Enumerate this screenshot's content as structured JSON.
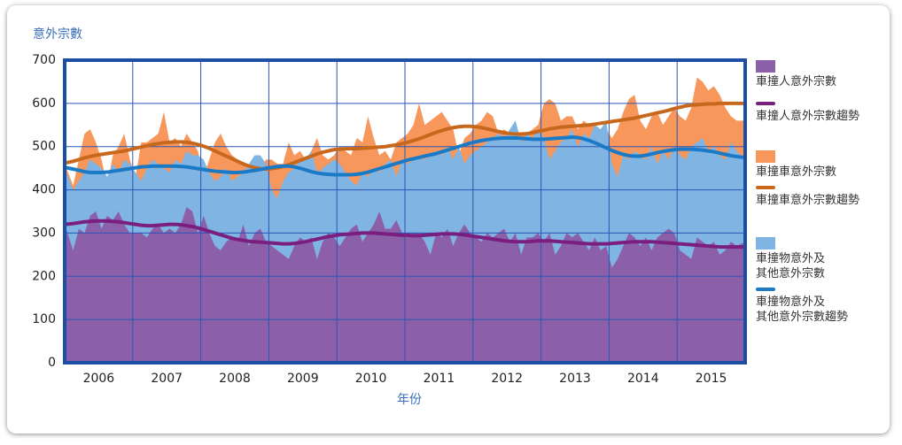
{
  "chart_data": {
    "type": "area",
    "title": "意外宗數",
    "x_label": "年份",
    "categories": [
      null,
      null,
      null,
      null,
      null,
      "2006",
      null,
      null,
      null,
      null,
      null,
      null,
      null,
      null,
      null,
      null,
      null,
      "2007",
      null,
      null,
      null,
      null,
      null,
      null,
      null,
      null,
      null,
      null,
      null,
      "2008",
      null,
      null,
      null,
      null,
      null,
      null,
      null,
      null,
      null,
      null,
      null,
      "2009",
      null,
      null,
      null,
      null,
      null,
      null,
      null,
      null,
      null,
      null,
      null,
      "2010",
      null,
      null,
      null,
      null,
      null,
      null,
      null,
      null,
      null,
      null,
      null,
      "2011",
      null,
      null,
      null,
      null,
      null,
      null,
      null,
      null,
      null,
      null,
      null,
      "2012",
      null,
      null,
      null,
      null,
      null,
      null,
      null,
      null,
      null,
      null,
      null,
      "2013",
      null,
      null,
      null,
      null,
      null,
      null,
      null,
      null,
      null,
      null,
      null,
      "2014",
      null,
      null,
      null,
      null,
      null,
      null,
      null,
      null,
      null,
      null,
      null,
      "2015",
      null,
      null,
      null,
      null,
      null,
      null
    ],
    "ylim": [
      0,
      700
    ],
    "yticks": [
      0,
      100,
      200,
      300,
      400,
      500,
      600,
      700
    ],
    "grid": true,
    "series": [
      {
        "name": "車撞人意外宗數",
        "type": "area",
        "color": "#8b60a9",
        "values": [
          320,
          260,
          310,
          300,
          340,
          350,
          310,
          340,
          330,
          350,
          320,
          300,
          300,
          300,
          290,
          310,
          320,
          300,
          310,
          300,
          320,
          360,
          350,
          300,
          340,
          300,
          270,
          260,
          280,
          290,
          280,
          320,
          270,
          300,
          310,
          280,
          270,
          260,
          250,
          240,
          270,
          290,
          280,
          290,
          240,
          280,
          300,
          290,
          270,
          290,
          310,
          320,
          280,
          300,
          320,
          350,
          310,
          310,
          330,
          300,
          290,
          300,
          300,
          280,
          250,
          300,
          290,
          310,
          270,
          300,
          320,
          300,
          290,
          280,
          300,
          290,
          300,
          310,
          280,
          300,
          250,
          290,
          290,
          300,
          280,
          300,
          250,
          270,
          300,
          290,
          300,
          280,
          260,
          290,
          260,
          270,
          220,
          240,
          270,
          300,
          290,
          270,
          290,
          260,
          290,
          300,
          310,
          300,
          260,
          250,
          240,
          290,
          280,
          270,
          280,
          250,
          260,
          280,
          270,
          280
        ]
      },
      {
        "name": "車撞人意外宗數趨勢",
        "type": "line",
        "color": "#7a1f80",
        "values": [
          320,
          322,
          324,
          326,
          327,
          328,
          328,
          328,
          327,
          326,
          324,
          322,
          320,
          318,
          317,
          317,
          318,
          319,
          320,
          320,
          319,
          317,
          315,
          312,
          308,
          304,
          300,
          296,
          292,
          288,
          285,
          283,
          281,
          280,
          279,
          278,
          277,
          276,
          275,
          275,
          276,
          278,
          280,
          283,
          286,
          289,
          292,
          294,
          296,
          297,
          298,
          299,
          300,
          300,
          300,
          299,
          298,
          297,
          296,
          295,
          295,
          294,
          294,
          295,
          296,
          297,
          298,
          298,
          298,
          297,
          296,
          294,
          292,
          290,
          288,
          286,
          284,
          282,
          281,
          280,
          280,
          280,
          281,
          282,
          282,
          282,
          281,
          280,
          279,
          278,
          277,
          276,
          275,
          275,
          275,
          275,
          276,
          277,
          278,
          279,
          280,
          280,
          280,
          280,
          279,
          278,
          277,
          276,
          275,
          274,
          273,
          272,
          271,
          270,
          269,
          268,
          268,
          268,
          268,
          268
        ]
      },
      {
        "name": "車撞車意外宗數",
        "type": "area",
        "color": "#f7975b",
        "values": [
          460,
          410,
          470,
          530,
          540,
          510,
          470,
          410,
          480,
          500,
          530,
          470,
          430,
          510,
          510,
          520,
          530,
          580,
          510,
          520,
          500,
          530,
          510,
          490,
          430,
          470,
          510,
          530,
          500,
          480,
          470,
          460,
          450,
          440,
          450,
          470,
          470,
          460,
          460,
          510,
          480,
          490,
          470,
          490,
          520,
          480,
          470,
          480,
          500,
          490,
          480,
          520,
          510,
          570,
          520,
          480,
          490,
          470,
          510,
          520,
          530,
          550,
          600,
          550,
          560,
          570,
          580,
          560,
          540,
          480,
          520,
          530,
          550,
          560,
          580,
          570,
          530,
          540,
          530,
          520,
          530,
          530,
          540,
          550,
          600,
          610,
          600,
          560,
          570,
          570,
          540,
          560,
          550,
          550,
          530,
          540,
          520,
          540,
          580,
          610,
          620,
          560,
          540,
          570,
          580,
          550,
          570,
          590,
          570,
          560,
          590,
          660,
          650,
          630,
          640,
          620,
          590,
          570,
          560,
          560
        ]
      },
      {
        "name": "車撞車意外宗數趨勢",
        "type": "line",
        "color": "#c8681c",
        "values": [
          462,
          466,
          470,
          474,
          477,
          480,
          482,
          484,
          486,
          488,
          490,
          493,
          496,
          499,
          502,
          505,
          507,
          509,
          510,
          511,
          511,
          510,
          508,
          505,
          501,
          496,
          490,
          484,
          478,
          472,
          466,
          460,
          455,
          451,
          449,
          448,
          449,
          451,
          454,
          458,
          463,
          468,
          473,
          478,
          483,
          487,
          490,
          493,
          494,
          495,
          495,
          495,
          496,
          497,
          498,
          499,
          500,
          502,
          504,
          507,
          510,
          514,
          518,
          523,
          528,
          533,
          537,
          541,
          544,
          546,
          547,
          547,
          546,
          544,
          541,
          538,
          535,
          532,
          530,
          529,
          529,
          530,
          532,
          535,
          538,
          541,
          543,
          545,
          546,
          547,
          548,
          549,
          550,
          552,
          554,
          556,
          558,
          560,
          562,
          564,
          566,
          569,
          572,
          575,
          578,
          581,
          584,
          588,
          591,
          594,
          596,
          597,
          598,
          599,
          599,
          600,
          600,
          600,
          600,
          600
        ]
      },
      {
        "name": "車撞物意外及\n其他意外宗數",
        "type": "area",
        "color": "#80b4e2",
        "values": [
          450,
          400,
          420,
          440,
          470,
          460,
          450,
          430,
          460,
          440,
          470,
          460,
          440,
          420,
          450,
          470,
          460,
          450,
          440,
          470,
          460,
          490,
          480,
          480,
          470,
          440,
          420,
          430,
          450,
          420,
          430,
          440,
          460,
          480,
          480,
          460,
          400,
          380,
          420,
          440,
          450,
          470,
          470,
          490,
          440,
          450,
          460,
          470,
          460,
          440,
          420,
          410,
          440,
          430,
          450,
          440,
          460,
          470,
          430,
          470,
          460,
          470,
          480,
          470,
          480,
          490,
          480,
          500,
          470,
          500,
          460,
          480,
          490,
          500,
          510,
          520,
          530,
          520,
          540,
          560,
          510,
          530,
          520,
          540,
          520,
          470,
          490,
          510,
          520,
          540,
          500,
          530,
          520,
          550,
          540,
          560,
          460,
          430,
          480,
          470,
          490,
          480,
          470,
          500,
          460,
          490,
          470,
          500,
          480,
          470,
          500,
          510,
          520,
          490,
          500,
          480,
          470,
          510,
          490,
          470
        ]
      },
      {
        "name": "車撞物意外及\n其他意外宗數趨勢",
        "type": "line",
        "color": "#1a7ac6",
        "values": [
          452,
          448,
          445,
          442,
          440,
          440,
          440,
          441,
          443,
          445,
          447,
          449,
          451,
          453,
          454,
          455,
          455,
          455,
          455,
          455,
          454,
          453,
          451,
          449,
          447,
          445,
          443,
          442,
          441,
          440,
          440,
          441,
          443,
          445,
          447,
          450,
          452,
          454,
          455,
          455,
          453,
          450,
          446,
          442,
          439,
          437,
          436,
          435,
          435,
          435,
          435,
          436,
          438,
          441,
          445,
          449,
          453,
          457,
          461,
          465,
          469,
          472,
          475,
          478,
          481,
          484,
          488,
          492,
          496,
          500,
          504,
          508,
          511,
          514,
          516,
          518,
          519,
          520,
          520,
          520,
          519,
          518,
          517,
          517,
          517,
          518,
          519,
          520,
          521,
          522,
          521,
          518,
          514,
          509,
          503,
          497,
          491,
          486,
          482,
          479,
          478,
          478,
          480,
          483,
          486,
          489,
          491,
          493,
          494,
          494,
          494,
          493,
          492,
          490,
          488,
          485,
          482,
          479,
          477,
          475
        ]
      }
    ]
  }
}
